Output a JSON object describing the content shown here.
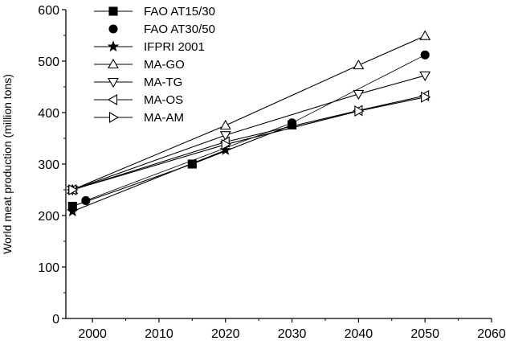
{
  "chart_data": {
    "type": "line",
    "ylabel": "World meat production (million tons)",
    "xlabel": "",
    "xlim": [
      1996,
      2060
    ],
    "ylim": [
      0,
      600
    ],
    "xticks": [
      2000,
      2010,
      2020,
      2030,
      2040,
      2050,
      2060
    ],
    "yticks": [
      0,
      100,
      200,
      300,
      400,
      500,
      600
    ],
    "grid": false,
    "legend": "top-left",
    "series": [
      {
        "name": "FAO AT15/30",
        "marker": "square",
        "points": [
          [
            1997,
            218
          ],
          [
            2015,
            300
          ],
          [
            2030,
            376
          ]
        ]
      },
      {
        "name": "FAO AT30/50",
        "marker": "circle",
        "points": [
          [
            1999,
            229
          ],
          [
            2030,
            380
          ],
          [
            2050,
            512
          ]
        ]
      },
      {
        "name": "IFPRI 2001",
        "marker": "star",
        "points": [
          [
            1997,
            208
          ],
          [
            2020,
            327
          ]
        ]
      },
      {
        "name": "MA-GO",
        "marker": "triangle-up",
        "points": [
          [
            1997,
            250
          ],
          [
            2020,
            375
          ],
          [
            2040,
            492
          ],
          [
            2050,
            549
          ]
        ]
      },
      {
        "name": "MA-TG",
        "marker": "triangle-down",
        "points": [
          [
            1997,
            250
          ],
          [
            2020,
            356
          ],
          [
            2040,
            436
          ],
          [
            2050,
            472
          ]
        ]
      },
      {
        "name": "MA-OS",
        "marker": "triangle-left",
        "points": [
          [
            1997,
            250
          ],
          [
            2020,
            343
          ],
          [
            2040,
            404
          ],
          [
            2050,
            433
          ]
        ]
      },
      {
        "name": "MA-AM",
        "marker": "triangle-right",
        "points": [
          [
            1997,
            250
          ],
          [
            2020,
            338
          ],
          [
            2040,
            403
          ],
          [
            2050,
            430
          ]
        ]
      }
    ]
  }
}
